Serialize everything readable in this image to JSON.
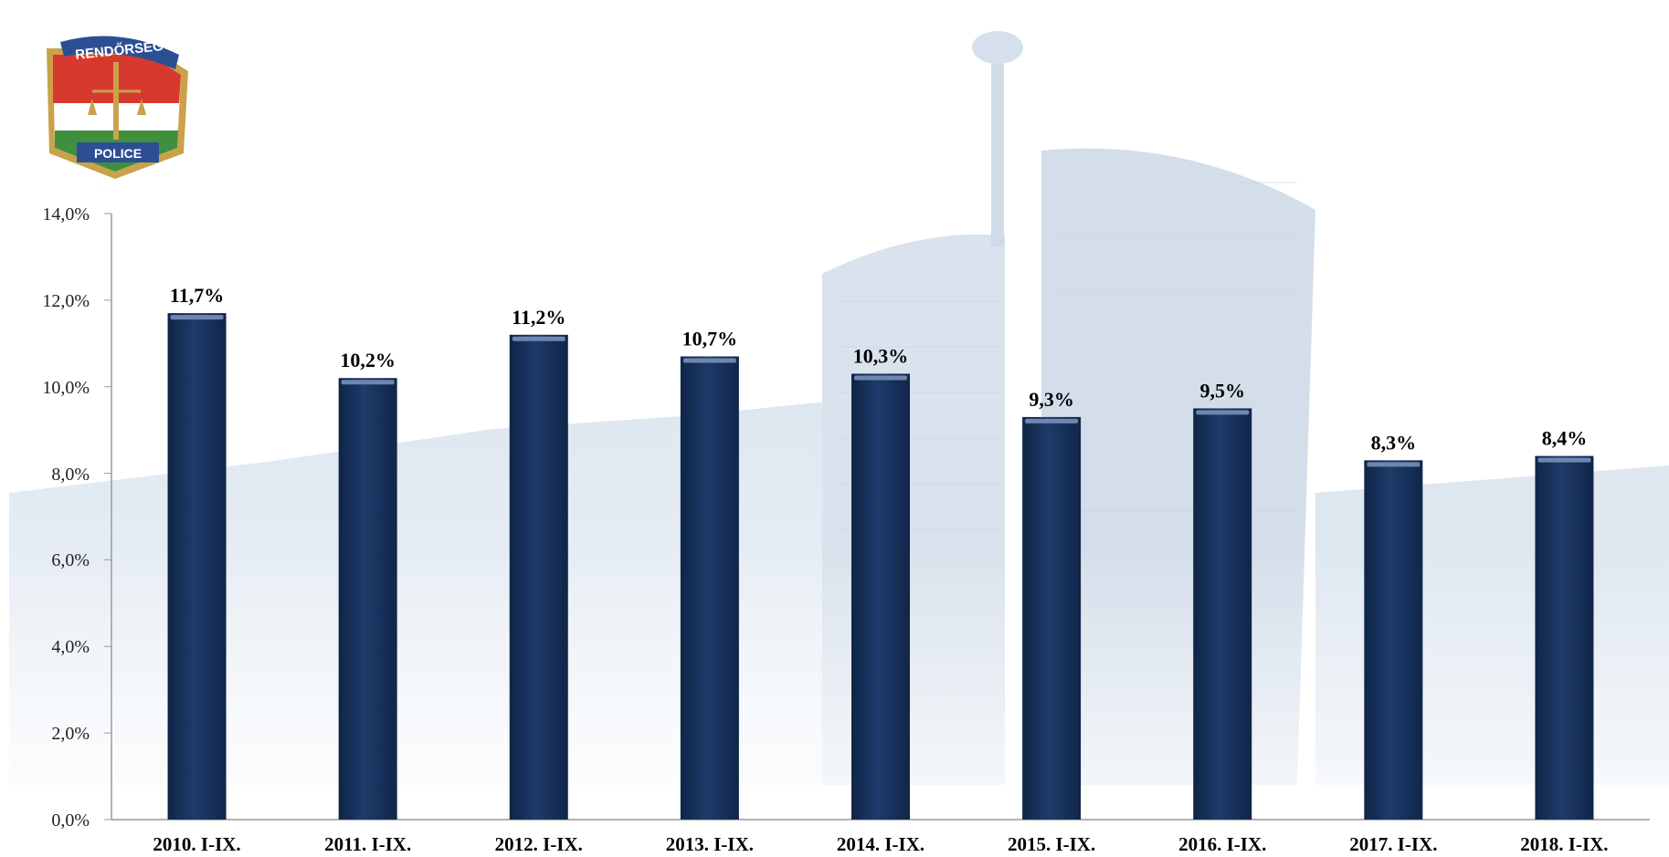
{
  "logo": {
    "top_text": "RENDŐRSÉG",
    "bottom_text": "POLICE"
  },
  "colors": {
    "bar": "#1b3560",
    "bar_highlight": "#6f86b0",
    "axis": "#9a9a9a",
    "background_building": "#dce6f0"
  },
  "chart_data": {
    "type": "bar",
    "categories": [
      "2010. I-IX.",
      "2011. I-IX.",
      "2012. I-IX.",
      "2013. I-IX.",
      "2014. I-IX.",
      "2015. I-IX.",
      "2016. I-IX.",
      "2017. I-IX.",
      "2018. I-IX."
    ],
    "values": [
      11.7,
      10.2,
      11.2,
      10.7,
      10.3,
      9.3,
      9.5,
      8.3,
      8.4
    ],
    "data_labels": [
      "11,7%",
      "10,2%",
      "11,2%",
      "10,7%",
      "10,3%",
      "9,3%",
      "9,5%",
      "8,3%",
      "8,4%"
    ],
    "y_ticks": [
      0,
      2,
      4,
      6,
      8,
      10,
      12,
      14
    ],
    "y_tick_labels": [
      "0,0%",
      "2,0%",
      "4,0%",
      "6,0%",
      "8,0%",
      "10,0%",
      "12,0%",
      "14,0%"
    ],
    "ylim": [
      0,
      14
    ],
    "title": "",
    "xlabel": "",
    "ylabel": "",
    "grid": false,
    "legend": "none"
  }
}
